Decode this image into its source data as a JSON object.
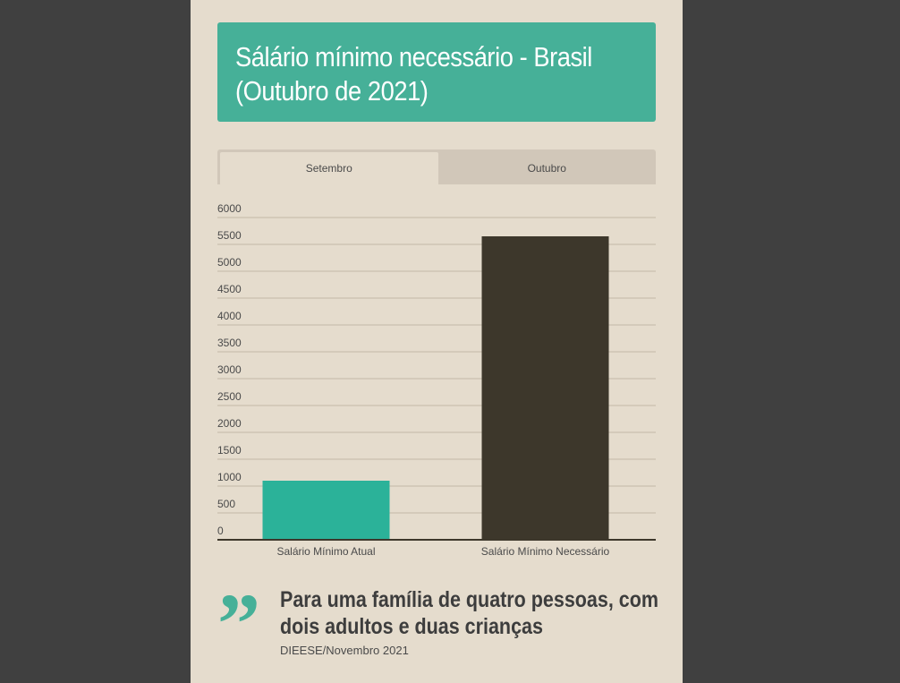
{
  "title": "Sálário mínimo necessário - Brasil (Outubro de 2021)",
  "tabs": [
    {
      "label": "Setembro",
      "active": true
    },
    {
      "label": "Outubro",
      "active": false
    }
  ],
  "chart_data": {
    "type": "bar",
    "categories": [
      "Salário Mínimo Atual",
      "Salário Mínimo Necessário"
    ],
    "values": [
      1100,
      5650
    ],
    "ylim": [
      0,
      6000
    ],
    "yticks": [
      0,
      500,
      1000,
      1500,
      2000,
      2500,
      3000,
      3500,
      4000,
      4500,
      5000,
      5500,
      6000
    ],
    "grid": true,
    "colors": [
      "#2bb299",
      "#3d372b"
    ]
  },
  "quote": {
    "text": "Para uma família de quatro pessoas, com dois adultos e duas crianças",
    "source": "DIEESE/Novembro 2021"
  },
  "colors": {
    "accent": "#46b098",
    "background": "#e5dccd",
    "outer": "#404040"
  }
}
